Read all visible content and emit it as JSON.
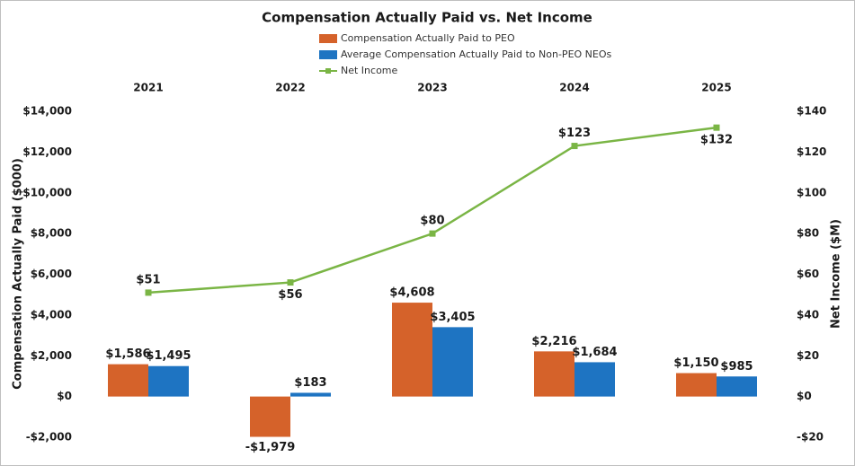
{
  "chart_data": {
    "type": "bar_line",
    "title": "Compensation Actually Paid vs. Net Income",
    "y_label": "Compensation Actually Paid ($000)",
    "y2_label": "Net Income ($M)",
    "categories": [
      "2021",
      "2022",
      "2023",
      "2024",
      "2025"
    ],
    "series": [
      {
        "name": "Compensation Actually Paid to PEO",
        "type": "bar",
        "color": "#d5622a",
        "values": [
          1586,
          -1979,
          4608,
          2216,
          1150
        ],
        "value_labels": [
          "$1,586",
          "-$1,979",
          "$4,608",
          "$2,216",
          "$1,150"
        ]
      },
      {
        "name": "Average Compensation Actually Paid to Non-PEO NEOs",
        "type": "bar",
        "color": "#1e74c2",
        "values": [
          1495,
          183,
          3405,
          1684,
          985
        ],
        "value_labels": [
          "$1,495",
          "$183",
          "$3,405",
          "$1,684",
          "$985"
        ]
      },
      {
        "name": "Net Income",
        "type": "line",
        "axis": "y2",
        "color": "#7ab545",
        "values": [
          51,
          56,
          80,
          123,
          132
        ],
        "value_labels": [
          "$51",
          "$56",
          "$80",
          "$123",
          "$132"
        ]
      }
    ],
    "ylim": [
      -2000,
      14000
    ],
    "yticks": [
      {
        "value": -2000,
        "label": "-$2,000"
      },
      {
        "value": 0,
        "label": "$0"
      },
      {
        "value": 2000,
        "label": "$2,000"
      },
      {
        "value": 4000,
        "label": "$4,000"
      },
      {
        "value": 6000,
        "label": "$6,000"
      },
      {
        "value": 8000,
        "label": "$8,000"
      },
      {
        "value": 10000,
        "label": "$10,000"
      },
      {
        "value": 12000,
        "label": "$12,000"
      },
      {
        "value": 14000,
        "label": "$14,000"
      }
    ],
    "y2lim": [
      -20,
      140
    ],
    "y2ticks": [
      {
        "value": -20,
        "label": "-$20"
      },
      {
        "value": 0,
        "label": "$0"
      },
      {
        "value": 20,
        "label": "$20"
      },
      {
        "value": 40,
        "label": "$40"
      },
      {
        "value": 60,
        "label": "$60"
      },
      {
        "value": 80,
        "label": "$80"
      },
      {
        "value": 100,
        "label": "$100"
      },
      {
        "value": 120,
        "label": "$120"
      },
      {
        "value": 140,
        "label": "$140"
      }
    ],
    "grid": false,
    "legend": "top"
  }
}
